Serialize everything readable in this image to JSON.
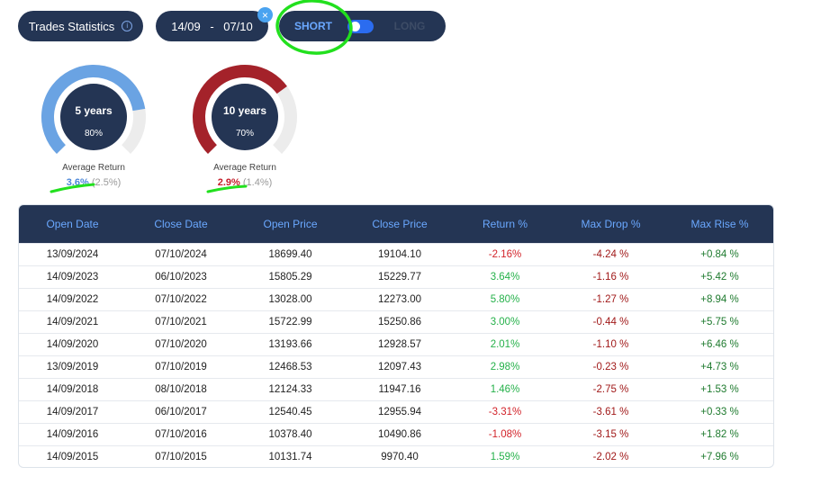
{
  "controls": {
    "stats_label": "Trades Statistics",
    "info_icon": "i",
    "date_from": "14/09",
    "date_sep": "-",
    "date_to": "07/10",
    "clear_icon": "×",
    "short_label": "SHORT",
    "long_label": "LONG",
    "mode": "short"
  },
  "gauges": [
    {
      "label": "5 years",
      "percent_label": "80%",
      "fill_fraction": 0.8,
      "color": "#6aa3e3",
      "avg_label": "Average Return",
      "avg_primary": "3.6%",
      "avg_secondary": "(2.5%)"
    },
    {
      "label": "10 years",
      "percent_label": "70%",
      "fill_fraction": 0.7,
      "color": "#a4222a",
      "avg_label": "Average Return",
      "avg_primary": "2.9%",
      "avg_secondary": "(1.4%)"
    }
  ],
  "table": {
    "headers": [
      "Open Date",
      "Close Date",
      "Open Price",
      "Close Price",
      "Return %",
      "Max Drop %",
      "Max Rise %"
    ],
    "rows": [
      [
        "13/09/2024",
        "07/10/2024",
        "18699.40",
        "19104.10",
        "-2.16%",
        "-4.24 %",
        "+0.84 %"
      ],
      [
        "14/09/2023",
        "06/10/2023",
        "15805.29",
        "15229.77",
        "3.64%",
        "-1.16 %",
        "+5.42 %"
      ],
      [
        "14/09/2022",
        "07/10/2022",
        "13028.00",
        "12273.00",
        "5.80%",
        "-1.27 %",
        "+8.94 %"
      ],
      [
        "14/09/2021",
        "07/10/2021",
        "15722.99",
        "15250.86",
        "3.00%",
        "-0.44 %",
        "+5.75 %"
      ],
      [
        "14/09/2020",
        "07/10/2020",
        "13193.66",
        "12928.57",
        "2.01%",
        "-1.10 %",
        "+6.46 %"
      ],
      [
        "13/09/2019",
        "07/10/2019",
        "12468.53",
        "12097.43",
        "2.98%",
        "-0.23 %",
        "+4.73 %"
      ],
      [
        "14/09/2018",
        "08/10/2018",
        "12124.33",
        "11947.16",
        "1.46%",
        "-2.75 %",
        "+1.53 %"
      ],
      [
        "14/09/2017",
        "06/10/2017",
        "12540.45",
        "12955.94",
        "-3.31%",
        "-3.61 %",
        "+0.33 %"
      ],
      [
        "14/09/2016",
        "07/10/2016",
        "10378.40",
        "10490.86",
        "-1.08%",
        "-3.15 %",
        "+1.82 %"
      ],
      [
        "14/09/2015",
        "07/10/2015",
        "10131.74",
        "9970.40",
        "1.59%",
        "-2.02 %",
        "+7.96 %"
      ]
    ]
  },
  "colors": {
    "dark_navy": "#243554",
    "accent_blue": "#6aa8ff",
    "positive": "#25b14a",
    "negative": "#d2232a",
    "annotation": "#22e01e"
  }
}
